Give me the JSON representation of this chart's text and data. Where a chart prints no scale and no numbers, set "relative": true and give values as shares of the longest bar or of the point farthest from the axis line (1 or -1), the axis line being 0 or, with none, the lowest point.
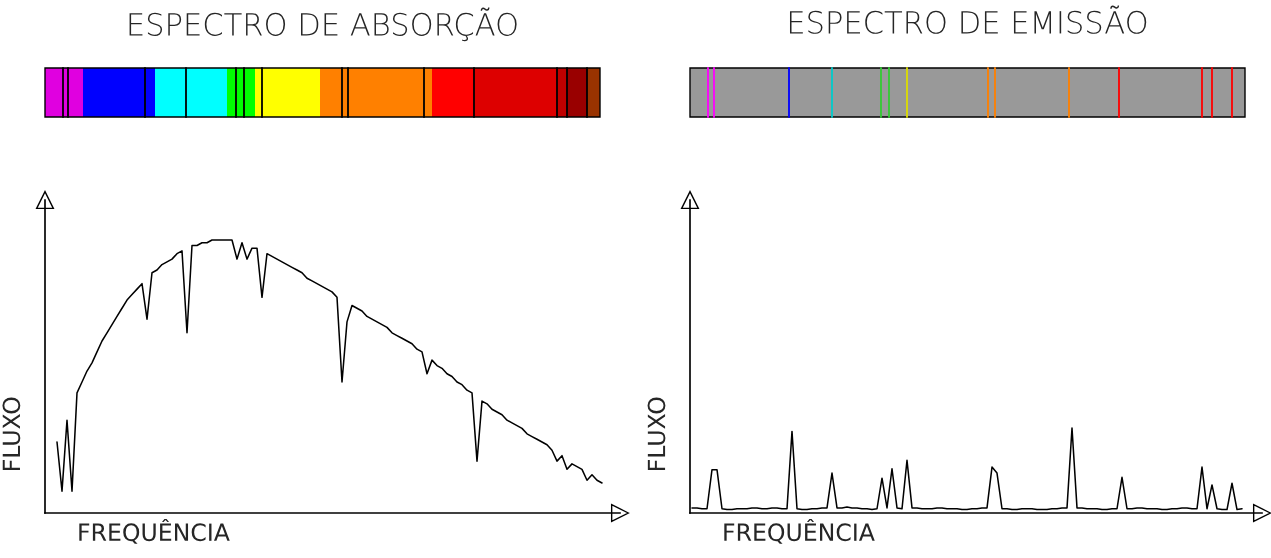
{
  "chart_data": [
    {
      "type": "line",
      "title": "ESPECTRO DE ABSORÇÃO",
      "xlabel": "FREQUÊNCIA",
      "ylabel": "FLUXO",
      "relative": true,
      "categories": [
        null,
        null,
        null,
        null,
        null,
        null,
        null,
        null,
        null,
        null,
        null,
        null,
        null,
        null,
        null,
        null,
        null,
        null,
        null,
        null,
        null,
        null,
        null,
        null,
        null,
        null,
        null,
        null,
        null,
        null,
        null,
        null,
        null,
        null,
        null,
        null,
        null,
        null,
        null,
        null,
        null,
        null,
        null,
        null,
        null,
        null,
        null,
        null,
        null,
        null,
        null,
        null,
        null,
        null,
        null,
        null,
        null,
        null,
        null,
        null,
        null,
        null,
        null,
        null,
        null,
        null,
        null,
        null,
        null,
        null,
        null,
        null,
        null,
        null,
        null,
        null,
        null,
        null,
        null,
        null,
        null,
        null,
        null,
        null,
        null,
        null,
        null,
        null,
        null,
        null,
        null,
        null,
        null,
        null,
        null,
        null,
        null,
        null,
        null,
        null,
        null,
        null,
        null,
        null,
        null,
        null,
        null,
        null,
        null,
        null
      ],
      "series": [
        {
          "color": "#000000",
          "values": [
            0.26,
            0.08,
            0.34,
            0.08,
            0.44,
            0.48,
            0.52,
            0.55,
            0.59,
            0.63,
            0.66,
            0.69,
            0.72,
            0.75,
            0.78,
            0.8,
            0.82,
            0.84,
            0.71,
            0.88,
            0.89,
            0.91,
            0.92,
            0.93,
            0.95,
            0.96,
            0.66,
            0.98,
            0.98,
            0.99,
            0.99,
            1.0,
            1.0,
            1.0,
            1.0,
            1.0,
            0.93,
            0.99,
            0.93,
            0.97,
            0.97,
            0.79,
            0.95,
            0.94,
            0.93,
            0.92,
            0.91,
            0.9,
            0.89,
            0.88,
            0.86,
            0.85,
            0.84,
            0.83,
            0.82,
            0.81,
            0.79,
            0.48,
            0.7,
            0.76,
            0.75,
            0.74,
            0.72,
            0.71,
            0.7,
            0.69,
            0.68,
            0.66,
            0.65,
            0.64,
            0.63,
            0.62,
            0.6,
            0.59,
            0.51,
            0.56,
            0.54,
            0.53,
            0.51,
            0.5,
            0.48,
            0.47,
            0.45,
            0.44,
            0.19,
            0.41,
            0.4,
            0.38,
            0.37,
            0.36,
            0.34,
            0.33,
            0.32,
            0.31,
            0.29,
            0.28,
            0.27,
            0.26,
            0.25,
            0.23,
            0.19,
            0.21,
            0.16,
            0.18,
            0.17,
            0.16,
            0.12,
            0.14,
            0.12,
            0.11
          ]
        }
      ]
    },
    {
      "type": "line",
      "title": "ESPECTRO DE EMISSÃO",
      "xlabel": "FREQUÊNCIA",
      "ylabel": "FLUXO",
      "relative": true,
      "categories": [
        null,
        null,
        null,
        null,
        null,
        null,
        null,
        null,
        null,
        null,
        null,
        null,
        null,
        null,
        null,
        null,
        null,
        null,
        null,
        null,
        null,
        null,
        null,
        null,
        null,
        null,
        null,
        null,
        null,
        null,
        null,
        null,
        null,
        null,
        null,
        null,
        null,
        null,
        null,
        null,
        null,
        null,
        null,
        null,
        null,
        null,
        null,
        null,
        null,
        null,
        null,
        null,
        null,
        null,
        null,
        null,
        null,
        null,
        null,
        null,
        null,
        null,
        null,
        null,
        null,
        null,
        null,
        null,
        null,
        null,
        null,
        null,
        null,
        null,
        null,
        null,
        null,
        null,
        null,
        null,
        null,
        null,
        null,
        null,
        null,
        null,
        null,
        null,
        null,
        null,
        null,
        null,
        null,
        null,
        null,
        null,
        null,
        null,
        null,
        null,
        null,
        null,
        null,
        null,
        null,
        null,
        null,
        null,
        null,
        null,
        null
      ],
      "series": [
        {
          "color": "#000000",
          "values": [
            0.06,
            0.06,
            0.05,
            0.05,
            0.51,
            0.51,
            0.05,
            0.04,
            0.04,
            0.05,
            0.05,
            0.05,
            0.06,
            0.06,
            0.05,
            0.05,
            0.06,
            0.06,
            0.05,
            0.05,
            0.96,
            0.05,
            0.04,
            0.04,
            0.05,
            0.05,
            0.06,
            0.06,
            0.47,
            0.06,
            0.06,
            0.07,
            0.06,
            0.06,
            0.05,
            0.05,
            0.04,
            0.05,
            0.41,
            0.06,
            0.52,
            0.06,
            0.05,
            0.62,
            0.06,
            0.06,
            0.05,
            0.05,
            0.05,
            0.06,
            0.06,
            0.05,
            0.05,
            0.05,
            0.04,
            0.04,
            0.05,
            0.05,
            0.06,
            0.06,
            0.54,
            0.47,
            0.05,
            0.05,
            0.04,
            0.04,
            0.05,
            0.05,
            0.05,
            0.04,
            0.04,
            0.04,
            0.05,
            0.05,
            0.06,
            0.06,
            1.0,
            0.06,
            0.06,
            0.05,
            0.05,
            0.05,
            0.04,
            0.04,
            0.05,
            0.05,
            0.42,
            0.05,
            0.05,
            0.06,
            0.06,
            0.05,
            0.05,
            0.05,
            0.04,
            0.04,
            0.05,
            0.05,
            0.06,
            0.06,
            0.05,
            0.05,
            0.54,
            0.05,
            0.33,
            0.05,
            0.04,
            0.04,
            0.35,
            0.04,
            0.05
          ]
        }
      ]
    }
  ]
}
